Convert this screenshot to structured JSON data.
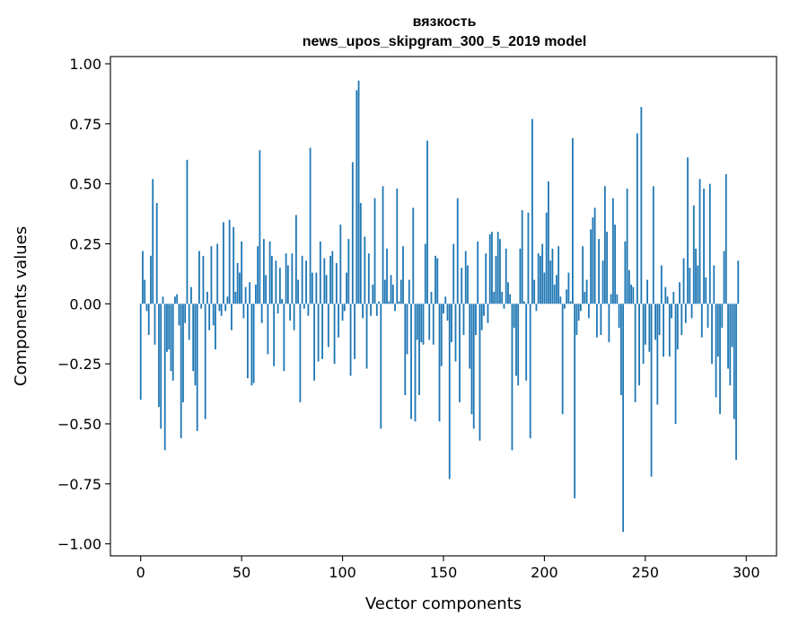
{
  "chart_data": {
    "type": "bar",
    "title": "вязкость",
    "subtitle": "news_upos_skipgram_300_5_2019 model",
    "xlabel": "Vector components",
    "ylabel": "Components values",
    "xlim": [
      -15,
      315
    ],
    "ylim": [
      -1.05,
      1.03
    ],
    "xticks": [
      0,
      50,
      100,
      150,
      200,
      250,
      300
    ],
    "xtick_labels": [
      "0",
      "50",
      "100",
      "150",
      "200",
      "250",
      "300"
    ],
    "yticks": [
      -1.0,
      -0.75,
      -0.5,
      -0.25,
      0.0,
      0.25,
      0.5,
      0.75,
      1.0
    ],
    "ytick_labels": [
      "−1.00",
      "−0.75",
      "−0.50",
      "−0.25",
      "0.00",
      "0.25",
      "0.50",
      "0.75",
      "1.00"
    ],
    "grid": false,
    "legend": "none",
    "bar_color": "#1f77b4",
    "values": [
      -0.4,
      0.22,
      0.1,
      -0.03,
      -0.13,
      0.2,
      0.52,
      -0.17,
      0.42,
      -0.43,
      -0.52,
      0.03,
      -0.61,
      -0.2,
      -0.19,
      -0.28,
      -0.32,
      0.03,
      0.04,
      -0.09,
      -0.56,
      -0.41,
      -0.08,
      0.6,
      -0.15,
      0.07,
      -0.28,
      -0.34,
      -0.53,
      0.22,
      -0.02,
      0.2,
      -0.48,
      0.05,
      -0.11,
      0.24,
      -0.09,
      -0.19,
      0.25,
      -0.03,
      -0.05,
      0.34,
      -0.03,
      0.03,
      0.35,
      -0.11,
      0.32,
      0.05,
      0.17,
      0.13,
      0.26,
      -0.06,
      0.07,
      -0.31,
      0.09,
      -0.34,
      -0.33,
      0.08,
      0.24,
      0.64,
      -0.08,
      0.27,
      0.12,
      -0.21,
      0.26,
      0.2,
      -0.26,
      0.18,
      -0.04,
      0.15,
      0.02,
      -0.28,
      0.21,
      0.16,
      -0.07,
      0.21,
      -0.11,
      0.37,
      0.1,
      -0.41,
      0.2,
      -0.02,
      0.18,
      -0.05,
      0.65,
      0.13,
      -0.32,
      0.13,
      -0.24,
      0.26,
      -0.23,
      0.19,
      0.12,
      -0.18,
      0.2,
      0.22,
      -0.25,
      0.17,
      -0.14,
      0.33,
      -0.07,
      -0.03,
      0.13,
      0.27,
      -0.3,
      0.59,
      -0.23,
      0.89,
      0.93,
      0.42,
      -0.06,
      0.28,
      -0.27,
      0.21,
      -0.05,
      0.08,
      0.44,
      -0.05,
      0.01,
      -0.52,
      0.49,
      0.1,
      0.23,
      0.01,
      0.12,
      0.08,
      -0.03,
      0.48,
      0.01,
      0.1,
      0.24,
      -0.38,
      -0.21,
      0.1,
      -0.48,
      0.4,
      -0.49,
      -0.15,
      -0.38,
      -0.16,
      -0.17,
      0.25,
      0.68,
      -0.15,
      0.05,
      -0.17,
      0.2,
      0.19,
      -0.49,
      -0.26,
      -0.04,
      0.03,
      -0.07,
      -0.73,
      -0.16,
      0.25,
      -0.24,
      0.44,
      -0.41,
      0.15,
      -0.13,
      0.22,
      0.16,
      -0.27,
      -0.46,
      -0.52,
      -0.13,
      0.26,
      -0.57,
      -0.11,
      -0.05,
      0.21,
      -0.08,
      0.29,
      0.3,
      0.05,
      0.2,
      0.3,
      0.27,
      0.05,
      -0.02,
      0.23,
      0.09,
      0.04,
      -0.61,
      -0.1,
      -0.3,
      -0.34,
      0.23,
      0.39,
      0.01,
      -0.32,
      0.38,
      -0.56,
      0.77,
      0.1,
      -0.03,
      0.21,
      0.2,
      0.25,
      0.13,
      0.38,
      0.51,
      0.18,
      0.23,
      0.08,
      0.12,
      0.24,
      0.03,
      -0.46,
      -0.02,
      0.06,
      0.13,
      0.01,
      0.69,
      -0.81,
      -0.13,
      -0.07,
      -0.03,
      0.24,
      0.05,
      0.1,
      -0.06,
      0.31,
      0.36,
      0.4,
      -0.14,
      0.27,
      -0.13,
      0.18,
      0.49,
      0.3,
      -0.16,
      0.04,
      0.44,
      0.33,
      0.04,
      -0.1,
      -0.38,
      -0.95,
      0.26,
      0.48,
      0.14,
      0.08,
      0.07,
      -0.41,
      0.71,
      -0.34,
      0.82,
      -0.25,
      -0.17,
      0.1,
      -0.2,
      -0.72,
      0.49,
      -0.15,
      -0.42,
      -0.13,
      0.16,
      -0.22,
      0.07,
      0.03,
      -0.22,
      -0.06,
      0.05,
      -0.5,
      -0.19,
      0.09,
      -0.13,
      0.19,
      -0.08,
      0.61,
      0.15,
      -0.06,
      0.41,
      0.23,
      0.16,
      0.52,
      -0.14,
      0.48,
      0.11,
      -0.1,
      0.5,
      -0.25,
      0.16,
      -0.39,
      -0.22,
      -0.46,
      -0.1,
      0.22,
      0.54,
      -0.27,
      -0.34,
      -0.18,
      -0.48,
      -0.65,
      0.18
    ]
  }
}
